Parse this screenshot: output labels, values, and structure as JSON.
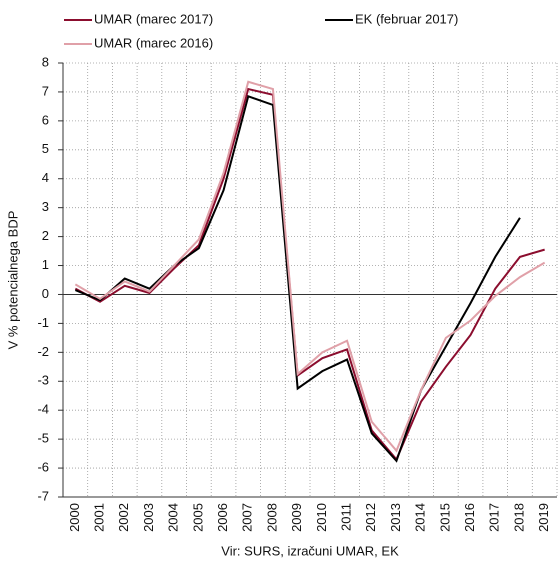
{
  "chart_data": {
    "type": "line",
    "categories": [
      "2000",
      "2001",
      "2002",
      "2003",
      "2004",
      "2005",
      "2006",
      "2007",
      "2008",
      "2009",
      "2010",
      "2011",
      "2012",
      "2013",
      "2014",
      "2015",
      "2016",
      "2017",
      "2018",
      "2019"
    ],
    "series": [
      {
        "name": "UMAR (marec 2017)",
        "color": "#8b0d2e",
        "values": [
          0.2,
          -0.25,
          0.3,
          0.05,
          0.9,
          1.7,
          4.0,
          7.1,
          6.9,
          -2.8,
          -2.2,
          -1.9,
          -4.7,
          -5.7,
          -3.7,
          -2.5,
          -1.4,
          0.2,
          1.3,
          1.55
        ]
      },
      {
        "name": "EK (februar 2017)",
        "color": "#000000",
        "values": [
          0.15,
          -0.2,
          0.55,
          0.2,
          1.0,
          1.6,
          3.6,
          6.85,
          6.55,
          -3.25,
          -2.65,
          -2.25,
          -4.8,
          -5.75,
          -3.3,
          -1.8,
          -0.3,
          1.3,
          2.65,
          null
        ]
      },
      {
        "name": "UMAR (marec 2016)",
        "color": "#e0a0a8",
        "values": [
          0.35,
          -0.15,
          0.45,
          0.1,
          1.0,
          1.9,
          4.2,
          7.35,
          7.1,
          -2.75,
          -2.0,
          -1.6,
          -4.4,
          -5.4,
          -3.3,
          -1.5,
          -0.9,
          -0.05,
          0.6,
          1.1
        ]
      }
    ],
    "y_label": "V % potencialnega BDP",
    "x_label": "Vir: SURS, izračuni UMAR, EK",
    "ylim": [
      -7,
      8
    ],
    "yticks": [
      -7,
      -6,
      -5,
      -4,
      -3,
      -2,
      -1,
      0,
      1,
      2,
      3,
      4,
      5,
      6,
      7,
      8
    ],
    "grid": true,
    "legend": "top"
  }
}
